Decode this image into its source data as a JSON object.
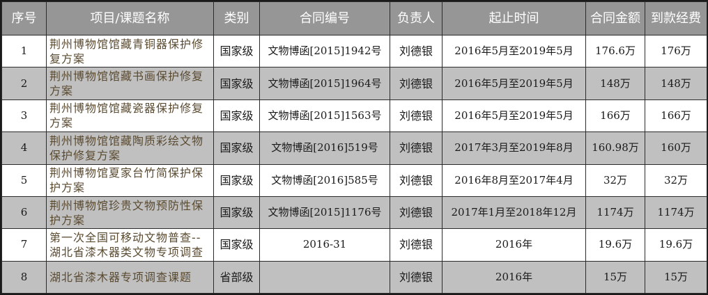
{
  "headers": [
    "序号",
    "项目/课题名称",
    "类别",
    "合同编号",
    "负责人",
    "起止时间",
    "合同金额",
    "到款经费"
  ],
  "rows": [
    {
      "no": "1",
      "name": "荆州博物馆馆藏青铜器保护修复方案",
      "category": "国家级",
      "contract": "文物博函[2015]1942号",
      "person": "刘德银",
      "period": "2016年5月至2019年5月",
      "amount": "176.6万",
      "received": "176万"
    },
    {
      "no": "2",
      "name": "荆州博物馆馆藏书画保护修复方案",
      "category": "国家级",
      "contract": "文物博函[2015]1964号",
      "person": "刘德银",
      "period": "2016年5月至2019年5月",
      "amount": "148万",
      "received": "148万"
    },
    {
      "no": "3",
      "name": "荆州博物馆馆藏瓷器保护修复方案",
      "category": "国家级",
      "contract": "文物博函[2015]1563号",
      "person": "刘德银",
      "period": "2016年5月至2019年5月",
      "amount": "166万",
      "received": "166万"
    },
    {
      "no": "4",
      "name": "荆州博物馆馆藏陶质彩绘文物保护修复方案",
      "category": "国家级",
      "contract": "文物博函[2016]519号",
      "person": "刘德银",
      "period": "2017年3月至2019年8月",
      "amount": "160.98万",
      "received": "160万"
    },
    {
      "no": "5",
      "name": "荆州博物馆夏家台竹简保护保护方案",
      "category": "国家级",
      "contract": "文物博函[2016]585号",
      "person": "刘德银",
      "period": "2016年8月至2017年4月",
      "amount": "32万",
      "received": "32万"
    },
    {
      "no": "6",
      "name": "荆州博物馆珍贵文物预防性保护方案",
      "category": "国家级",
      "contract": "文物博函[2015]1176号",
      "person": "刘德银",
      "period": "2017年1月至2018年12月",
      "amount": "1174万",
      "received": "1174万"
    },
    {
      "no": "7",
      "name": "第一次全国可移动文物普查--湖北省漆木器类文物专项调查",
      "category": "国家级",
      "contract": "2016-31",
      "person": "刘德银",
      "period": "2016年",
      "amount": "19.6万",
      "received": "19.6万"
    },
    {
      "no": "8",
      "name": "湖北省漆木器专项调查课题",
      "category": "省部级",
      "contract": "",
      "person": "刘德银",
      "period": "2016年",
      "amount": "15万",
      "received": "15万"
    }
  ],
  "colors": {
    "header_bg": "#969696",
    "header_text": "#ffffff",
    "row_even_bg": "#c0c0c0",
    "row_odd_bg": "#ffffff",
    "border": "#1a1a1a"
  }
}
